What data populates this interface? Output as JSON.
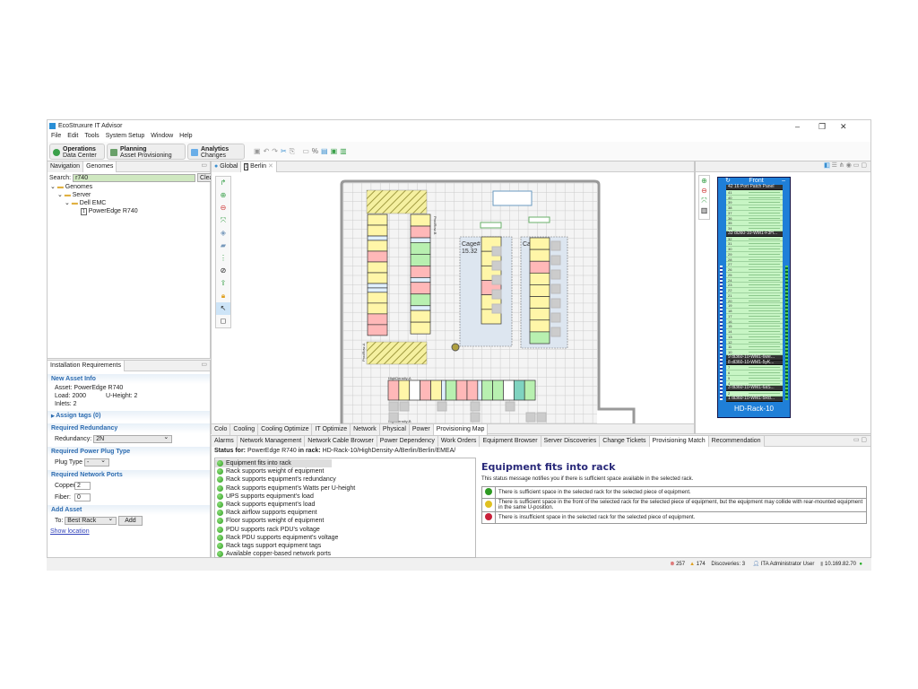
{
  "app": {
    "title": "EcoStruxure IT Advisor",
    "window_controls": [
      "–",
      "❐",
      "✕"
    ]
  },
  "menu": [
    "File",
    "Edit",
    "Tools",
    "System Setup",
    "Window",
    "Help"
  ],
  "perspectives": [
    {
      "title": "Operations",
      "sub": "Data Center",
      "color": "#3aa04a"
    },
    {
      "title": "Planning",
      "sub": "Asset Provisioning",
      "color": "#6aa06a"
    },
    {
      "title": "Analytics",
      "sub": "Changes",
      "color": "#6aaee8"
    }
  ],
  "left_top": {
    "tabs": [
      "Navigation",
      "Genomes"
    ],
    "search_label": "Search:",
    "search_value": "r740",
    "clear_label": "Clear",
    "tree": [
      "Genomes",
      "Server",
      "Dell EMC",
      "PowerEdge R740"
    ]
  },
  "install": {
    "tab": "Installation Requirements",
    "new_asset": {
      "header": "New Asset Info",
      "asset": "Asset: PowerEdge R740",
      "load": "Load: 2000",
      "uheight": "U-Height: 2",
      "inlets": "Inlets: 2"
    },
    "assign_tags": "Assign tags (0)",
    "redundancy": {
      "header": "Required Redundancy",
      "label": "Redundancy:",
      "value": "2N"
    },
    "plug": {
      "header": "Required Power Plug Type",
      "label": "Plug Type",
      "value": "-"
    },
    "ports": {
      "header": "Required Network Ports",
      "copper_label": "Copper:",
      "copper": "2",
      "fiber_label": "Fiber:",
      "fiber": "0"
    },
    "add": {
      "header": "Add Asset",
      "to_label": "To:",
      "to_value": "Best Rack",
      "add_label": "Add"
    },
    "show_location": "Show location"
  },
  "editor": {
    "tabs": [
      "Global",
      "Berlin"
    ],
    "bottom_tabs": [
      "Colo",
      "Cooling",
      "Cooling Optimize",
      "IT Optimize",
      "Network",
      "Physical",
      "Power",
      "Provisioning Map"
    ],
    "active_bottom_tab": "Provisioning Map"
  },
  "floor": {
    "labels": {
      "row_a": "ProdRow-A",
      "row_b": "ProdRow-B",
      "cage1": "Cage#",
      "cage1_area": "15.32",
      "cage2": "Ca",
      "hd_a": "HighDensity-A",
      "hd_b": "HighDensity-B"
    },
    "status_colors": {
      "y": "#fff6a8",
      "p": "#ffb8b8",
      "g": "#b8f0b0",
      "w": "#ffffff",
      "t": "#e0f0ff",
      "c": "#7fd3c0"
    },
    "row_a_col1": "yytypyyttyypp",
    "row_a_col2": "yptggptpgtyy",
    "cage1_racks": "yyypyy",
    "cage2_racks": "yypyyyyyg",
    "hd_a_racks": "pywpytgpptggwcg"
  },
  "rack": {
    "header": "Front",
    "name": "HD-Rack-10",
    "devices": {
      "42": "16 Port Patch Panel",
      "33": "dl360-10-WM1-F3H...",
      "9": "dl360-10-WM1-6we...",
      "8": "dl360-10-WM1-5yK...",
      "3": "dl360-10-WM1-6aS...",
      "1": "dl360-10-WM1-5Rd..."
    }
  },
  "bottom": {
    "tabs": [
      "Alarms",
      "Network Management",
      "Network Cable Browser",
      "Power Dependency",
      "Work Orders",
      "Equipment Browser",
      "Server Discoveries",
      "Change Tickets",
      "Provisioning Match",
      "Recommendation"
    ],
    "active_tab": "Provisioning Match",
    "status_prefix": "Status for:",
    "status_asset": "PowerEdge R740",
    "status_mid": "in rack:",
    "status_rack": "HD-Rack-10/HighDensity-A/Berlin/Berlin/EMEA/",
    "checks": [
      "Equipment fits into rack",
      "Rack supports weight of equipment",
      "Rack supports equipment's redundancy",
      "Rack supports equipment's Watts per U-height",
      "UPS supports equipment's load",
      "Rack supports equipment's load",
      "Rack airflow supports equipment",
      "Floor supports weight of equipment",
      "PDU supports rack PDU's voltage",
      "Rack PDU supports equipment's voltage",
      "Rack tags support equipment tags",
      "Available copper-based network ports"
    ],
    "detail": {
      "title": "Equipment fits into rack",
      "desc": "This status message notifies you if there is sufficient space available in the selected rack.",
      "legend": [
        {
          "color": "#2e9a22",
          "text": "There is sufficient space in the selected rack for the selected piece of equipment."
        },
        {
          "color": "#e0c020",
          "text": "There is sufficient space in the front of the selected rack for the selected piece of equipment, but the equipment may collide with rear-mounted equipment in the same U-position."
        },
        {
          "color": "#c8203a",
          "text": "There is insufficient space in the selected rack for the selected piece of equipment."
        }
      ]
    }
  },
  "statusbar": {
    "errors": "257",
    "warnings": "174",
    "discoveries": "Discoveries: 3",
    "user": "ITA Administrator User",
    "ip": "10.169.82.70"
  }
}
